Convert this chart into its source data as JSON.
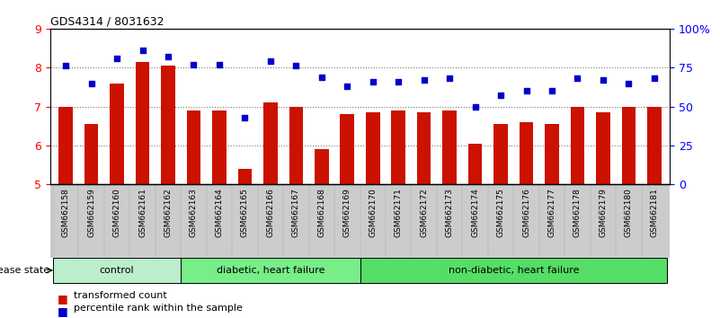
{
  "title": "GDS4314 / 8031632",
  "samples": [
    "GSM662158",
    "GSM662159",
    "GSM662160",
    "GSM662161",
    "GSM662162",
    "GSM662163",
    "GSM662164",
    "GSM662165",
    "GSM662166",
    "GSM662167",
    "GSM662168",
    "GSM662169",
    "GSM662170",
    "GSM662171",
    "GSM662172",
    "GSM662173",
    "GSM662174",
    "GSM662175",
    "GSM662176",
    "GSM662177",
    "GSM662178",
    "GSM662179",
    "GSM662180",
    "GSM662181"
  ],
  "bar_values": [
    7.0,
    6.55,
    7.6,
    8.15,
    8.05,
    6.9,
    6.9,
    5.4,
    7.1,
    7.0,
    5.9,
    6.8,
    6.85,
    6.9,
    6.85,
    6.9,
    6.05,
    6.55,
    6.6,
    6.55,
    7.0,
    6.85,
    7.0,
    7.0
  ],
  "percentile_values": [
    76,
    65,
    81,
    86,
    82,
    77,
    77,
    43,
    79,
    76,
    69,
    63,
    66,
    66,
    67,
    68,
    50,
    57,
    60,
    60,
    68,
    67,
    65,
    68
  ],
  "groups": [
    {
      "label": "control",
      "start": 0,
      "end": 5
    },
    {
      "label": "diabetic, heart failure",
      "start": 5,
      "end": 12
    },
    {
      "label": "non-diabetic, heart failure",
      "start": 12,
      "end": 24
    }
  ],
  "group_fill_colors": [
    "#bbeecc",
    "#77ee88",
    "#55dd66"
  ],
  "ylim_left": [
    5,
    9
  ],
  "ylim_right": [
    0,
    100
  ],
  "yticks_left": [
    5,
    6,
    7,
    8,
    9
  ],
  "yticks_right": [
    0,
    25,
    50,
    75,
    100
  ],
  "ytick_labels_right": [
    "0",
    "25",
    "50",
    "75",
    "100%"
  ],
  "bar_color": "#cc1100",
  "dot_color": "#0000cc",
  "bg_color": "#ffffff",
  "tick_bg_color": "#cccccc",
  "disease_state_label": "disease state"
}
